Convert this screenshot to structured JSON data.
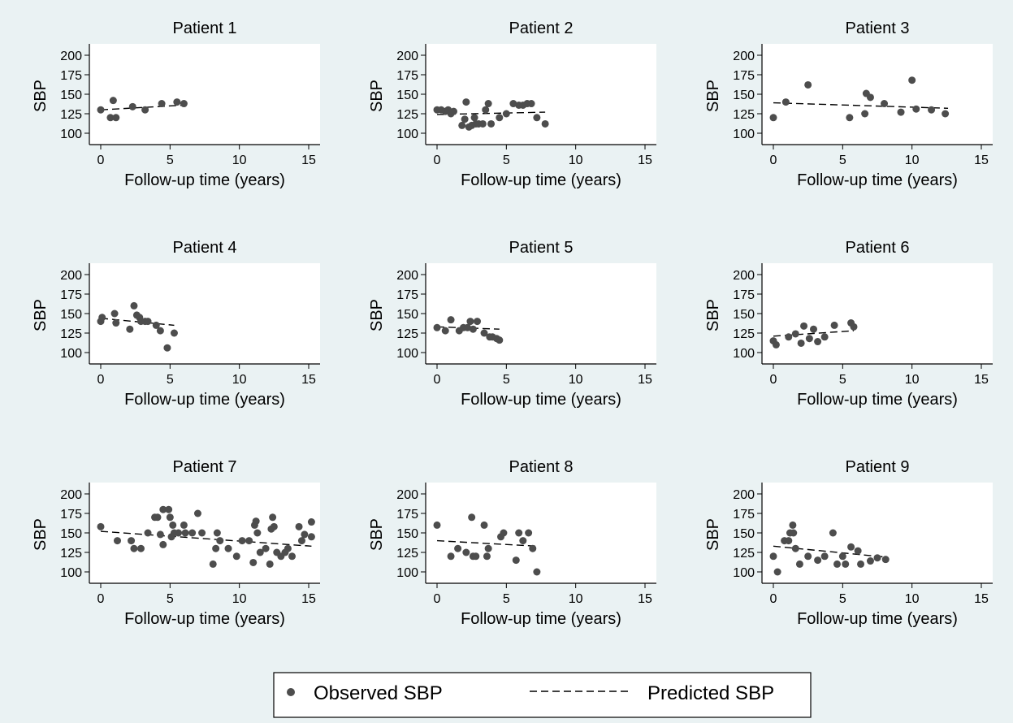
{
  "chart_data": [
    {
      "type": "scatter",
      "title": "Patient 1",
      "xlabel": "Follow-up time (years)",
      "ylabel": "SBP",
      "xlim": [
        0,
        15
      ],
      "ylim": [
        100,
        200
      ],
      "xticks": [
        0,
        5,
        10,
        15
      ],
      "yticks": [
        100,
        125,
        150,
        175,
        200
      ],
      "observed": [
        [
          0,
          130
        ],
        [
          0.7,
          120
        ],
        [
          0.9,
          142
        ],
        [
          1.1,
          120
        ],
        [
          2.3,
          134
        ],
        [
          3.2,
          130
        ],
        [
          4.4,
          138
        ],
        [
          5.5,
          140
        ],
        [
          6.0,
          138
        ]
      ],
      "predicted": [
        [
          0,
          130
        ],
        [
          6.0,
          136
        ]
      ]
    },
    {
      "type": "scatter",
      "title": "Patient 2",
      "xlabel": "Follow-up time (years)",
      "ylabel": "SBP",
      "xlim": [
        0,
        15
      ],
      "ylim": [
        100,
        200
      ],
      "xticks": [
        0,
        5,
        10,
        15
      ],
      "yticks": [
        100,
        125,
        150,
        175,
        200
      ],
      "observed": [
        [
          0,
          130
        ],
        [
          0.3,
          130
        ],
        [
          0.6,
          128
        ],
        [
          0.8,
          130
        ],
        [
          1.0,
          125
        ],
        [
          1.2,
          128
        ],
        [
          1.8,
          110
        ],
        [
          2.0,
          118
        ],
        [
          2.1,
          140
        ],
        [
          2.3,
          108
        ],
        [
          2.5,
          110
        ],
        [
          2.7,
          120
        ],
        [
          2.8,
          112
        ],
        [
          3.0,
          112
        ],
        [
          3.3,
          112
        ],
        [
          3.5,
          130
        ],
        [
          3.7,
          138
        ],
        [
          3.9,
          112
        ],
        [
          4.5,
          120
        ],
        [
          5.0,
          125
        ],
        [
          5.5,
          138
        ],
        [
          5.9,
          136
        ],
        [
          6.2,
          136
        ],
        [
          6.5,
          138
        ],
        [
          6.8,
          138
        ],
        [
          7.2,
          120
        ],
        [
          7.8,
          112
        ]
      ],
      "predicted": [
        [
          0,
          124
        ],
        [
          7.8,
          127
        ]
      ]
    },
    {
      "type": "scatter",
      "title": "Patient 3",
      "xlabel": "Follow-up time (years)",
      "ylabel": "SBP",
      "xlim": [
        0,
        15
      ],
      "ylim": [
        100,
        200
      ],
      "xticks": [
        0,
        5,
        10,
        15
      ],
      "yticks": [
        100,
        125,
        150,
        175,
        200
      ],
      "observed": [
        [
          0,
          120
        ],
        [
          0.9,
          140
        ],
        [
          2.5,
          162
        ],
        [
          5.5,
          120
        ],
        [
          6.6,
          125
        ],
        [
          6.7,
          151
        ],
        [
          7.0,
          146
        ],
        [
          8.0,
          138
        ],
        [
          9.2,
          127
        ],
        [
          10.0,
          168
        ],
        [
          10.3,
          131
        ],
        [
          11.4,
          130
        ],
        [
          12.4,
          125
        ]
      ],
      "predicted": [
        [
          0,
          139
        ],
        [
          12.6,
          132
        ]
      ]
    },
    {
      "type": "scatter",
      "title": "Patient 4",
      "xlabel": "Follow-up time (years)",
      "ylabel": "SBP",
      "xlim": [
        0,
        15
      ],
      "ylim": [
        100,
        200
      ],
      "xticks": [
        0,
        5,
        10,
        15
      ],
      "yticks": [
        100,
        125,
        150,
        175,
        200
      ],
      "observed": [
        [
          0,
          140
        ],
        [
          0.1,
          145
        ],
        [
          1.0,
          150
        ],
        [
          1.1,
          138
        ],
        [
          2.1,
          130
        ],
        [
          2.4,
          160
        ],
        [
          2.6,
          148
        ],
        [
          2.8,
          145
        ],
        [
          2.9,
          140
        ],
        [
          3.2,
          140
        ],
        [
          3.4,
          140
        ],
        [
          4.0,
          135
        ],
        [
          4.3,
          128
        ],
        [
          4.8,
          106
        ],
        [
          5.3,
          125
        ]
      ],
      "predicted": [
        [
          0,
          144
        ],
        [
          5.3,
          135
        ]
      ]
    },
    {
      "type": "scatter",
      "title": "Patient 5",
      "xlabel": "Follow-up time (years)",
      "ylabel": "SBP",
      "xlim": [
        0,
        15
      ],
      "ylim": [
        100,
        200
      ],
      "xticks": [
        0,
        5,
        10,
        15
      ],
      "yticks": [
        100,
        125,
        150,
        175,
        200
      ],
      "observed": [
        [
          0,
          132
        ],
        [
          0.6,
          128
        ],
        [
          1.0,
          142
        ],
        [
          1.6,
          128
        ],
        [
          1.9,
          132
        ],
        [
          2.2,
          132
        ],
        [
          2.4,
          140
        ],
        [
          2.6,
          130
        ],
        [
          2.9,
          140
        ],
        [
          3.4,
          125
        ],
        [
          3.8,
          120
        ],
        [
          4.0,
          120
        ],
        [
          4.3,
          118
        ],
        [
          4.5,
          116
        ]
      ],
      "predicted": [
        [
          0,
          133
        ],
        [
          4.5,
          130
        ]
      ]
    },
    {
      "type": "scatter",
      "title": "Patient 6",
      "xlabel": "Follow-up time (years)",
      "ylabel": "SBP",
      "xlim": [
        0,
        15
      ],
      "ylim": [
        100,
        200
      ],
      "xticks": [
        0,
        5,
        10,
        15
      ],
      "yticks": [
        100,
        125,
        150,
        175,
        200
      ],
      "observed": [
        [
          0,
          115
        ],
        [
          0.2,
          110
        ],
        [
          1.1,
          120
        ],
        [
          1.6,
          124
        ],
        [
          2.0,
          112
        ],
        [
          2.2,
          134
        ],
        [
          2.6,
          118
        ],
        [
          2.9,
          130
        ],
        [
          3.2,
          114
        ],
        [
          3.7,
          120
        ],
        [
          4.4,
          135
        ],
        [
          5.6,
          138
        ],
        [
          5.8,
          133
        ]
      ],
      "predicted": [
        [
          0,
          121
        ],
        [
          5.8,
          128
        ]
      ]
    },
    {
      "type": "scatter",
      "title": "Patient 7",
      "xlabel": "Follow-up time (years)",
      "ylabel": "SBP",
      "xlim": [
        0,
        15
      ],
      "ylim": [
        100,
        200
      ],
      "xticks": [
        0,
        5,
        10,
        15
      ],
      "yticks": [
        100,
        125,
        150,
        175,
        200
      ],
      "observed": [
        [
          0,
          158
        ],
        [
          1.2,
          140
        ],
        [
          2.2,
          140
        ],
        [
          2.4,
          130
        ],
        [
          2.9,
          130
        ],
        [
          3.4,
          150
        ],
        [
          3.9,
          170
        ],
        [
          4.1,
          170
        ],
        [
          4.3,
          148
        ],
        [
          4.5,
          135
        ],
        [
          4.5,
          180
        ],
        [
          4.9,
          180
        ],
        [
          5.0,
          170
        ],
        [
          5.1,
          145
        ],
        [
          5.2,
          160
        ],
        [
          5.3,
          150
        ],
        [
          5.6,
          150
        ],
        [
          6.0,
          160
        ],
        [
          6.1,
          150
        ],
        [
          6.6,
          150
        ],
        [
          7.0,
          175
        ],
        [
          7.3,
          150
        ],
        [
          8.1,
          110
        ],
        [
          8.3,
          130
        ],
        [
          8.4,
          150
        ],
        [
          8.6,
          140
        ],
        [
          9.2,
          130
        ],
        [
          9.8,
          120
        ],
        [
          10.2,
          140
        ],
        [
          10.7,
          140
        ],
        [
          11.0,
          112
        ],
        [
          11.1,
          160
        ],
        [
          11.2,
          165
        ],
        [
          11.3,
          150
        ],
        [
          11.5,
          125
        ],
        [
          11.9,
          130
        ],
        [
          12.2,
          110
        ],
        [
          12.3,
          155
        ],
        [
          12.4,
          170
        ],
        [
          12.5,
          158
        ],
        [
          12.7,
          125
        ],
        [
          13.0,
          120
        ],
        [
          13.3,
          125
        ],
        [
          13.5,
          130
        ],
        [
          13.8,
          120
        ],
        [
          14.3,
          158
        ],
        [
          14.5,
          140
        ],
        [
          14.7,
          148
        ],
        [
          15.2,
          164
        ],
        [
          15.2,
          145
        ]
      ],
      "predicted": [
        [
          0,
          152
        ],
        [
          15.2,
          133
        ]
      ]
    },
    {
      "type": "scatter",
      "title": "Patient 8",
      "xlabel": "Follow-up time (years)",
      "ylabel": "SBP",
      "xlim": [
        0,
        15
      ],
      "ylim": [
        100,
        200
      ],
      "xticks": [
        0,
        5,
        10,
        15
      ],
      "yticks": [
        100,
        125,
        150,
        175,
        200
      ],
      "observed": [
        [
          0,
          160
        ],
        [
          1.0,
          120
        ],
        [
          1.5,
          130
        ],
        [
          2.1,
          125
        ],
        [
          2.5,
          170
        ],
        [
          2.6,
          120
        ],
        [
          2.8,
          120
        ],
        [
          3.4,
          160
        ],
        [
          3.6,
          120
        ],
        [
          3.7,
          130
        ],
        [
          4.6,
          145
        ],
        [
          4.8,
          150
        ],
        [
          5.7,
          115
        ],
        [
          5.9,
          150
        ],
        [
          6.2,
          140
        ],
        [
          6.6,
          150
        ],
        [
          6.9,
          130
        ],
        [
          7.2,
          100
        ]
      ],
      "predicted": [
        [
          0,
          140
        ],
        [
          7.2,
          133
        ]
      ]
    },
    {
      "type": "scatter",
      "title": "Patient 9",
      "xlabel": "Follow-up time (years)",
      "ylabel": "SBP",
      "xlim": [
        0,
        15
      ],
      "ylim": [
        100,
        200
      ],
      "xticks": [
        0,
        5,
        10,
        15
      ],
      "yticks": [
        100,
        125,
        150,
        175,
        200
      ],
      "observed": [
        [
          0,
          120
        ],
        [
          0.3,
          100
        ],
        [
          0.8,
          140
        ],
        [
          1.1,
          140
        ],
        [
          1.2,
          150
        ],
        [
          1.4,
          160
        ],
        [
          1.45,
          150
        ],
        [
          1.6,
          130
        ],
        [
          1.9,
          110
        ],
        [
          2.5,
          120
        ],
        [
          3.2,
          115
        ],
        [
          3.7,
          120
        ],
        [
          4.3,
          150
        ],
        [
          4.6,
          110
        ],
        [
          5.0,
          120
        ],
        [
          5.2,
          110
        ],
        [
          5.6,
          132
        ],
        [
          6.1,
          127
        ],
        [
          6.3,
          110
        ],
        [
          7.0,
          114
        ],
        [
          7.5,
          118
        ],
        [
          8.1,
          116
        ]
      ],
      "predicted": [
        [
          0,
          133
        ],
        [
          8.1,
          119
        ]
      ]
    }
  ],
  "legend": {
    "observed_label": "Observed SBP",
    "predicted_label": "Predicted SBP"
  }
}
